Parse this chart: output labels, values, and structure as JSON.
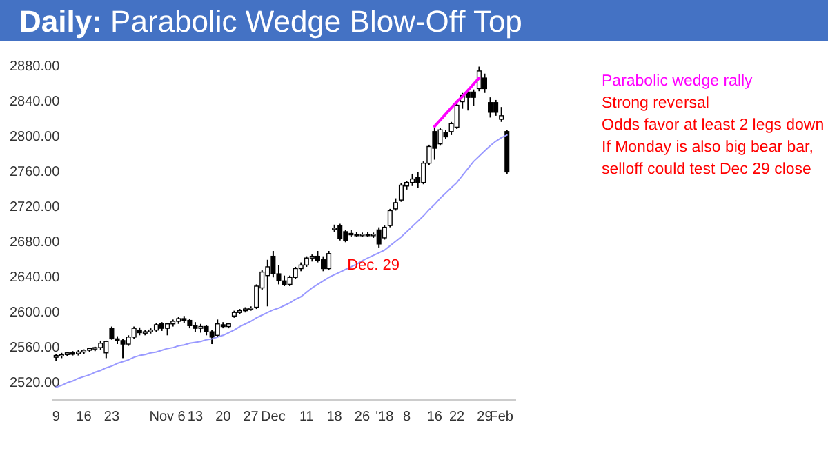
{
  "chart_data": {
    "type": "candlestick",
    "title": "Daily: Parabolic Wedge Blow-Off Top",
    "categories": [
      "9",
      null,
      null,
      null,
      null,
      "16",
      null,
      null,
      null,
      null,
      "23",
      null,
      null,
      null,
      null,
      null,
      null,
      null,
      null,
      null,
      "Nov 6",
      null,
      null,
      null,
      null,
      "13",
      null,
      null,
      null,
      null,
      "20",
      null,
      null,
      null,
      null,
      "27",
      null,
      null,
      null,
      "Dec",
      null,
      null,
      null,
      null,
      null,
      "11",
      null,
      null,
      null,
      null,
      "18",
      null,
      null,
      null,
      null,
      "26",
      null,
      null,
      null,
      "'18",
      null,
      null,
      null,
      "8",
      null,
      null,
      null,
      null,
      "16",
      null,
      null,
      null,
      "22",
      null,
      null,
      null,
      null,
      "29",
      null,
      null,
      "Feb",
      null
    ],
    "series": [
      {
        "color": "#000000",
        "ohlc": [
          [
            2547,
            2551,
            2543,
            2549
          ],
          [
            2549,
            2552,
            2546,
            2550
          ],
          [
            2550,
            2553,
            2548,
            2552
          ],
          [
            2552,
            2554,
            2549,
            2551
          ],
          [
            2551,
            2555,
            2549,
            2553
          ],
          [
            2553,
            2556,
            2551,
            2555
          ],
          [
            2555,
            2558,
            2553,
            2557
          ],
          [
            2557,
            2559,
            2554,
            2558
          ],
          [
            2558,
            2566,
            2555,
            2563
          ],
          [
            2552,
            2566,
            2546,
            2565
          ],
          [
            2580,
            2582,
            2567,
            2568
          ],
          [
            2568,
            2571,
            2562,
            2566
          ],
          [
            2566,
            2568,
            2546,
            2562
          ],
          [
            2562,
            2572,
            2560,
            2570
          ],
          [
            2570,
            2582,
            2568,
            2580
          ],
          [
            2578,
            2581,
            2572,
            2575
          ],
          [
            2575,
            2578,
            2572,
            2576
          ],
          [
            2576,
            2580,
            2574,
            2578
          ],
          [
            2578,
            2586,
            2576,
            2584
          ],
          [
            2585,
            2587,
            2577,
            2580
          ],
          [
            2580,
            2586,
            2572,
            2585
          ],
          [
            2585,
            2590,
            2582,
            2588
          ],
          [
            2588,
            2593,
            2585,
            2591
          ],
          [
            2591,
            2594,
            2586,
            2589
          ],
          [
            2589,
            2591,
            2580,
            2583
          ],
          [
            2583,
            2587,
            2576,
            2580
          ],
          [
            2580,
            2585,
            2575,
            2582
          ],
          [
            2582,
            2584,
            2572,
            2576
          ],
          [
            2576,
            2578,
            2562,
            2570
          ],
          [
            2572,
            2590,
            2570,
            2585
          ],
          [
            2584,
            2587,
            2580,
            2582
          ],
          [
            2582,
            2586,
            2580,
            2585
          ],
          [
            2594,
            2600,
            2592,
            2598
          ],
          [
            2598,
            2602,
            2596,
            2600
          ],
          [
            2600,
            2604,
            2598,
            2602
          ],
          [
            2602,
            2605,
            2600,
            2603
          ],
          [
            2604,
            2630,
            2602,
            2628
          ],
          [
            2626,
            2646,
            2624,
            2644
          ],
          [
            2640,
            2658,
            2605,
            2650
          ],
          [
            2662,
            2668,
            2638,
            2642
          ],
          [
            2642,
            2652,
            2630,
            2634
          ],
          [
            2634,
            2640,
            2628,
            2630
          ],
          [
            2630,
            2640,
            2628,
            2638
          ],
          [
            2638,
            2650,
            2636,
            2648
          ],
          [
            2648,
            2655,
            2645,
            2652
          ],
          [
            2652,
            2662,
            2650,
            2660
          ],
          [
            2660,
            2664,
            2656,
            2662
          ],
          [
            2662,
            2668,
            2655,
            2657
          ],
          [
            2658,
            2662,
            2645,
            2648
          ],
          [
            2648,
            2668,
            2646,
            2665
          ],
          [
            2694,
            2698,
            2690,
            2694
          ],
          [
            2697,
            2699,
            2680,
            2682
          ],
          [
            2690,
            2692,
            2678,
            2680
          ],
          [
            2688,
            2692,
            2684,
            2688
          ],
          [
            2687,
            2690,
            2684,
            2686
          ],
          [
            2686,
            2689,
            2684,
            2687
          ],
          [
            2687,
            2690,
            2684,
            2686
          ],
          [
            2686,
            2689,
            2683,
            2687
          ],
          [
            2692,
            2695,
            2672,
            2676
          ],
          [
            2683,
            2697,
            2681,
            2695
          ],
          [
            2697,
            2716,
            2695,
            2714
          ],
          [
            2716,
            2728,
            2714,
            2723
          ],
          [
            2726,
            2745,
            2724,
            2743
          ],
          [
            2742,
            2748,
            2738,
            2746
          ],
          [
            2746,
            2756,
            2742,
            2750
          ],
          [
            2752,
            2758,
            2740,
            2746
          ],
          [
            2746,
            2770,
            2744,
            2768
          ],
          [
            2768,
            2789,
            2766,
            2787
          ],
          [
            2804,
            2808,
            2772,
            2785
          ],
          [
            2790,
            2808,
            2788,
            2806
          ],
          [
            2803,
            2806,
            2796,
            2798
          ],
          [
            2804,
            2815,
            2800,
            2813
          ],
          [
            2809,
            2836,
            2807,
            2834
          ],
          [
            2838,
            2848,
            2830,
            2845
          ],
          [
            2849,
            2851,
            2828,
            2843
          ],
          [
            2849,
            2852,
            2833,
            2843
          ],
          [
            2853,
            2878,
            2850,
            2873
          ],
          [
            2865,
            2870,
            2848,
            2853
          ],
          [
            2837,
            2843,
            2820,
            2826
          ],
          [
            2837,
            2840,
            2822,
            2826
          ],
          [
            2818,
            2832,
            2815,
            2822
          ],
          [
            2804,
            2806,
            2756,
            2758
          ]
        ]
      },
      {
        "type": "line",
        "color": "#9999ff",
        "values": [
          2513,
          2515,
          2518,
          2520,
          2523,
          2525,
          2527,
          2530,
          2532,
          2535,
          2537,
          2540,
          2542,
          2544,
          2547,
          2549,
          2550,
          2552,
          2553,
          2555,
          2557,
          2558,
          2560,
          2561,
          2563,
          2564,
          2565,
          2567,
          2568,
          2570,
          2572,
          2575,
          2578,
          2582,
          2585,
          2588,
          2592,
          2595,
          2598,
          2601,
          2603,
          2606,
          2609,
          2613,
          2616,
          2621,
          2626,
          2630,
          2634,
          2638,
          2641,
          2644,
          2647,
          2650,
          2653,
          2657,
          2660,
          2663,
          2666,
          2669,
          2674,
          2679,
          2684,
          2690,
          2696,
          2702,
          2708,
          2715,
          2721,
          2728,
          2734,
          2740,
          2746,
          2754,
          2762,
          2770,
          2776,
          2782,
          2788,
          2793,
          2797,
          2800
        ]
      },
      {
        "type": "line",
        "color": "#ff00ff",
        "values": [
          null,
          null,
          null,
          null,
          null,
          null,
          null,
          null,
          null,
          null,
          null,
          null,
          null,
          null,
          null,
          null,
          null,
          null,
          null,
          null,
          null,
          null,
          null,
          null,
          null,
          null,
          null,
          null,
          null,
          null,
          null,
          null,
          null,
          null,
          null,
          null,
          null,
          null,
          null,
          null,
          null,
          null,
          null,
          null,
          null,
          null,
          null,
          null,
          null,
          null,
          null,
          null,
          null,
          null,
          null,
          null,
          null,
          null,
          null,
          null,
          null,
          null,
          null,
          null,
          null,
          null,
          null,
          null,
          2810,
          2817,
          2824,
          2831,
          2838,
          2844,
          2851,
          2858,
          2865,
          null,
          null,
          null,
          null,
          null
        ]
      }
    ],
    "ylim": [
      2500,
      2880
    ],
    "yticks": [
      {
        "value": 2520,
        "label": "2520.00"
      },
      {
        "value": 2560,
        "label": "2560.00"
      },
      {
        "value": 2600,
        "label": "2600.00"
      },
      {
        "value": 2640,
        "label": "2640.00"
      },
      {
        "value": 2680,
        "label": "2680.00"
      },
      {
        "value": 2720,
        "label": "2720.00"
      },
      {
        "value": 2760,
        "label": "2760.00"
      },
      {
        "value": 2800,
        "label": "2800.00"
      },
      {
        "value": 2840,
        "label": "2840.00"
      },
      {
        "value": 2880,
        "label": "2880.00"
      }
    ],
    "annotations": [
      "Parabolic wedge rally",
      "Strong reversal",
      "Odds favor at least 2 legs down",
      "If Monday is also big bear bar,",
      "selloff could test Dec 29 close",
      "Dec. 29"
    ]
  }
}
